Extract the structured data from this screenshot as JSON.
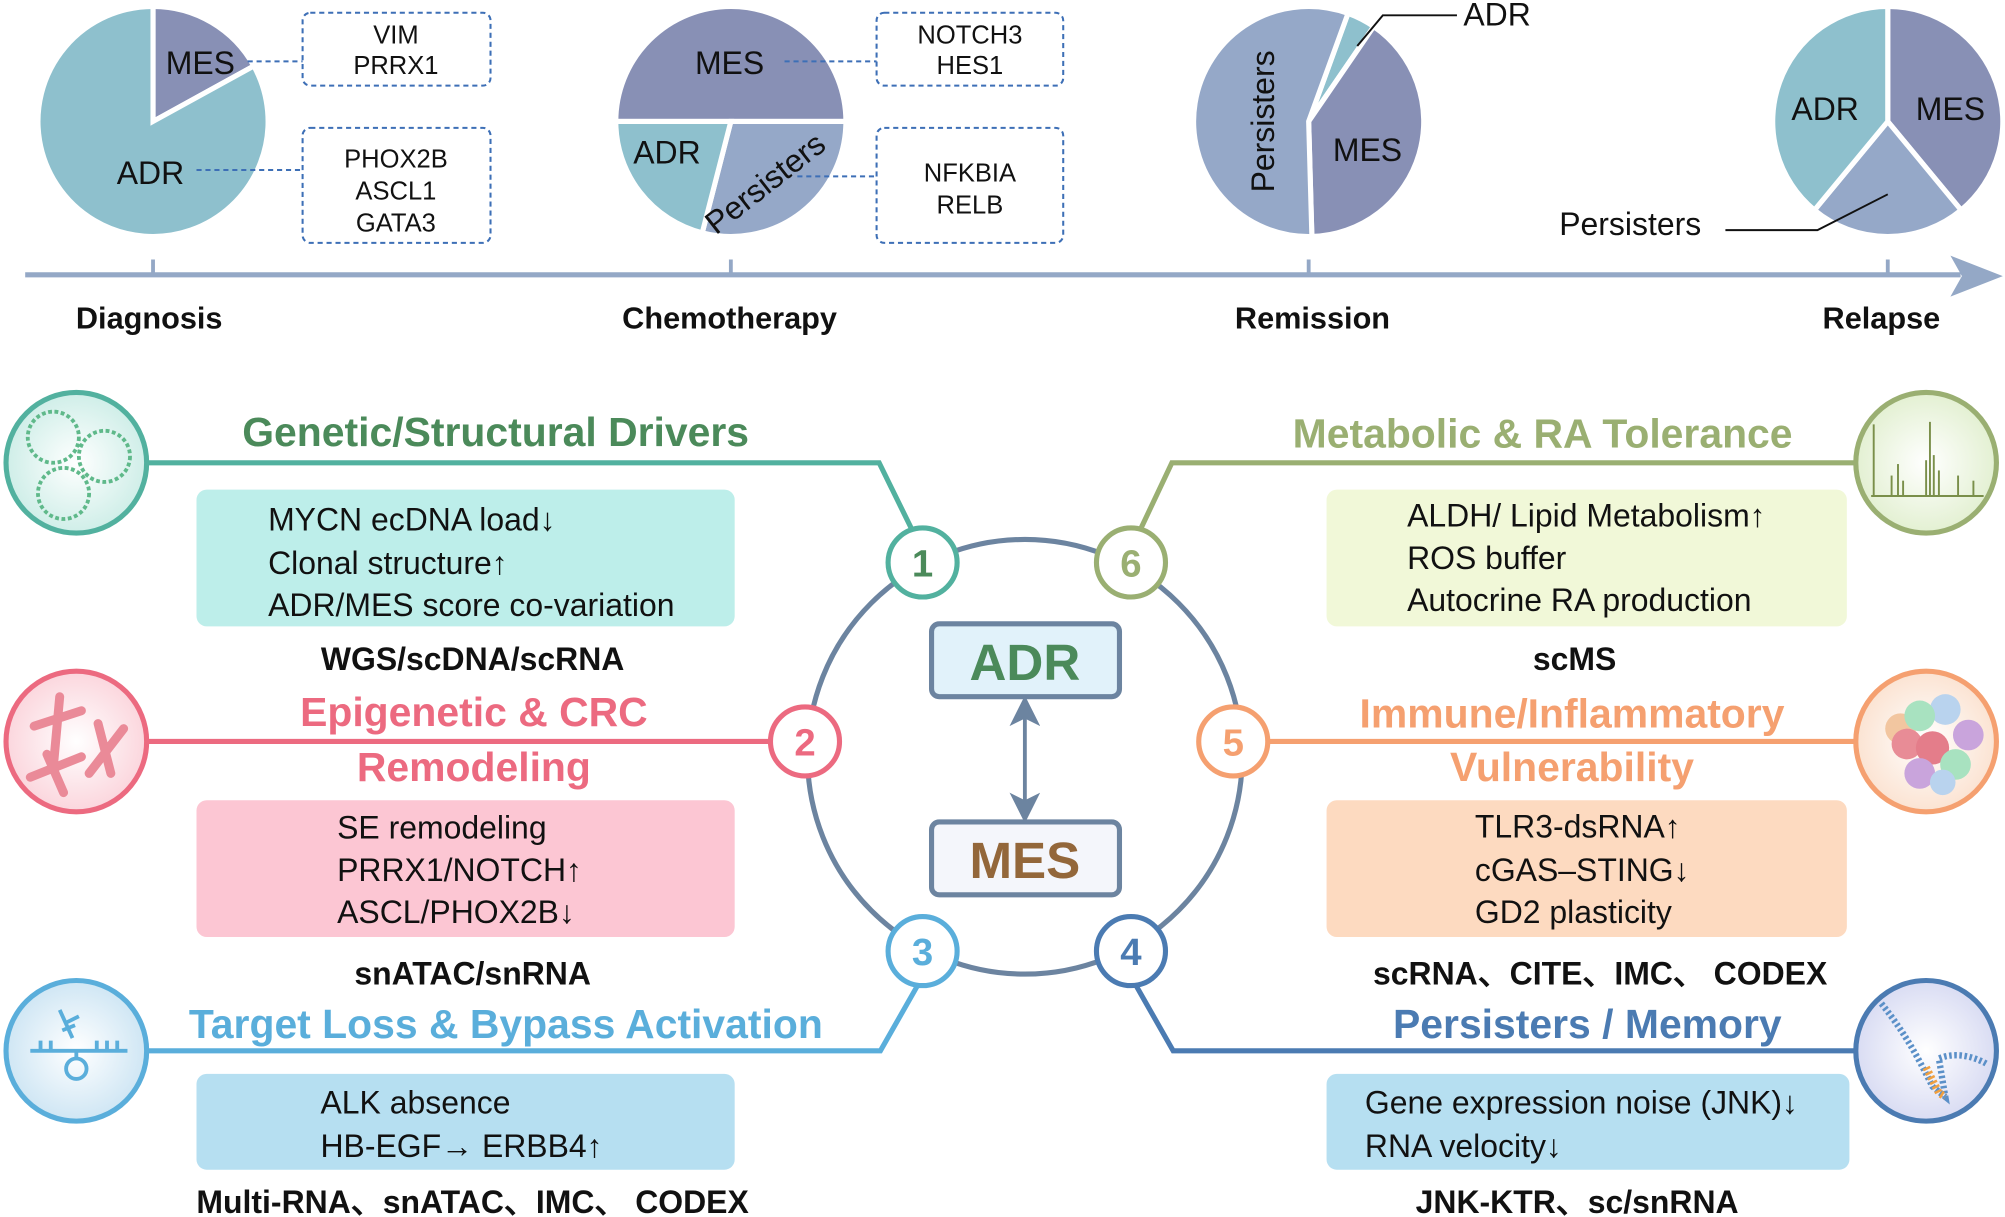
{
  "timeline": {
    "stages": [
      {
        "label": "Diagnosis",
        "composition": [
          {
            "name": "MES",
            "fraction": 0.17,
            "markers": [
              "VIM",
              "PRRX1"
            ]
          },
          {
            "name": "ADR",
            "fraction": 0.83,
            "markers": [
              "PHOX2B",
              "ASCL1",
              "GATA3"
            ]
          }
        ]
      },
      {
        "label": "Chemotherapy",
        "composition": [
          {
            "name": "MES",
            "fraction": 0.5,
            "markers": [
              "NOTCH3",
              "HES1"
            ]
          },
          {
            "name": "Persisters",
            "fraction": 0.29,
            "markers": [
              "NFKBIA",
              "RELB"
            ]
          },
          {
            "name": "ADR",
            "fraction": 0.21
          }
        ]
      },
      {
        "label": "Remission",
        "composition": [
          {
            "name": "ADR",
            "fraction": 0.04
          },
          {
            "name": "MES",
            "fraction": 0.4
          },
          {
            "name": "Persisters",
            "fraction": 0.56
          }
        ]
      },
      {
        "label": "Relapse",
        "composition": [
          {
            "name": "MES",
            "fraction": 0.39
          },
          {
            "name": "Persisters",
            "fraction": 0.22
          },
          {
            "name": "ADR",
            "fraction": 0.39
          }
        ]
      }
    ],
    "colors": {
      "ADR": "#8ec0cd",
      "MES": "#8890b5",
      "Persisters": "#95a8c8",
      "axis": "#94a8c6"
    }
  },
  "center": {
    "top": "ADR",
    "bottom": "MES",
    "ring_color": "#6c84a0"
  },
  "modules": [
    {
      "number": "1",
      "title": "Genetic/Structural Drivers",
      "items": [
        "MYCN ecDNA load↓",
        "Clonal structure↑",
        "ADR/MES score co-variation"
      ],
      "tech": "WGS/scDNA/scRNA",
      "icon": "ecdna-icon",
      "color": "#52b19f",
      "title_color": "#4b8a5a",
      "box_color": "#bdeeea"
    },
    {
      "number": "2",
      "title_lines": [
        "Epigenetic & CRC",
        "Remodeling"
      ],
      "items": [
        "SE remodeling",
        "PRRX1/NOTCH↑",
        "ASCL/PHOX2B↓"
      ],
      "tech": "snATAC/snRNA",
      "icon": "chromosome-icon",
      "color": "#ec6a80",
      "box_color": "#fcc6d3"
    },
    {
      "number": "3",
      "title": "Target Loss & Bypass Activation",
      "items": [
        "ALK absence",
        "HB-EGF→ ERBB4↑"
      ],
      "tech": "Multi-RNA、snATAC、IMC、 CODEX",
      "icon": "receptor-icon",
      "color": "#5aaedb",
      "box_color": "#b6dff1"
    },
    {
      "number": "4",
      "title": "Persisters / Memory",
      "items": [
        "Gene expression noise (JNK)↓",
        "RNA velocity↓"
      ],
      "tech": "JNK-KTR、sc/snRNA",
      "icon": "trajectory-icon",
      "color": "#4b7bb2",
      "box_color": "#b6dff1"
    },
    {
      "number": "5",
      "title_lines": [
        "Immune/Inflammatory",
        "Vulnerability"
      ],
      "items": [
        "TLR3-dsRNA↑",
        "cGAS–STING↓",
        "GD2 plasticity"
      ],
      "tech": "scRNA、CITE、IMC、 CODEX",
      "icon": "immune-cells-icon",
      "color": "#f5a070",
      "box_color": "#fddac0"
    },
    {
      "number": "6",
      "title": "Metabolic & RA Tolerance",
      "items": [
        "ALDH/ Lipid Metabolism↑",
        "ROS buffer",
        "Autocrine RA production"
      ],
      "tech": "scMS",
      "icon": "mass-spectrum-icon",
      "color": "#9aaf72",
      "box_color": "#f1f8d8"
    }
  ]
}
